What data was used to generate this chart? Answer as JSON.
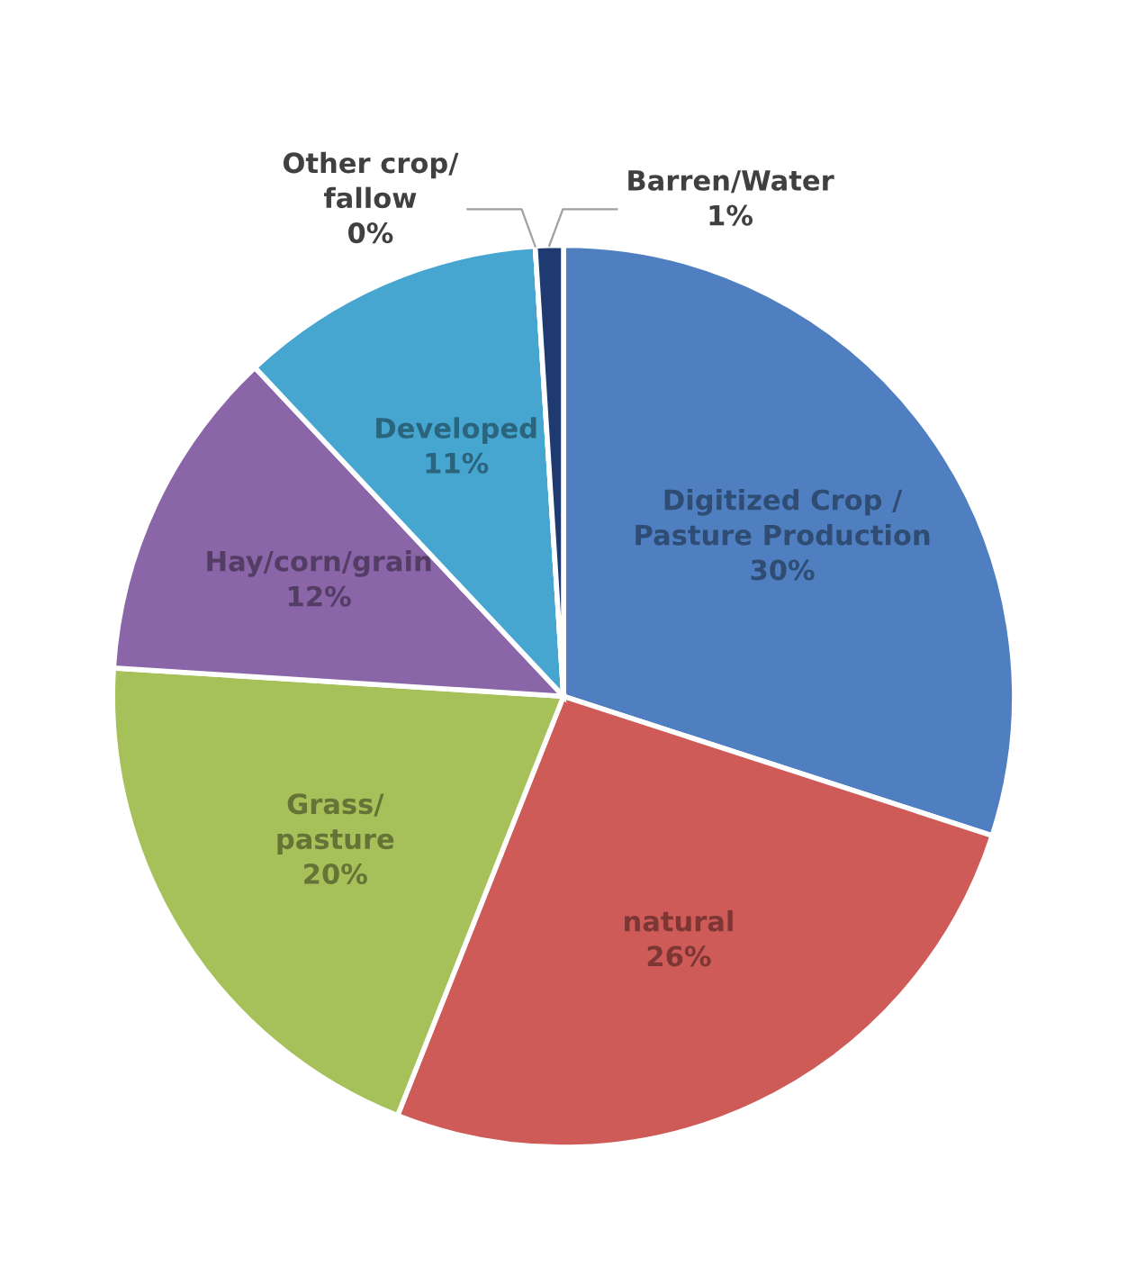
{
  "chart_data": {
    "type": "pie",
    "categories": [
      "Digitized Crop /\nPasture Production",
      "natural",
      "Grass/\npasture",
      "Hay/corn/grain",
      "Developed",
      "Other crop/\nfallow",
      "Barren/Water"
    ],
    "values": [
      30,
      26,
      20,
      12,
      11,
      0,
      1
    ],
    "value_labels": [
      "30%",
      "26%",
      "20%",
      "12%",
      "11%",
      "0%",
      "1%"
    ],
    "colors": [
      "#4f7fc0",
      "#cf5b58",
      "#a6c05a",
      "#8a65a8",
      "#47a6d0",
      "#f08a3a",
      "#1f3a70"
    ]
  }
}
